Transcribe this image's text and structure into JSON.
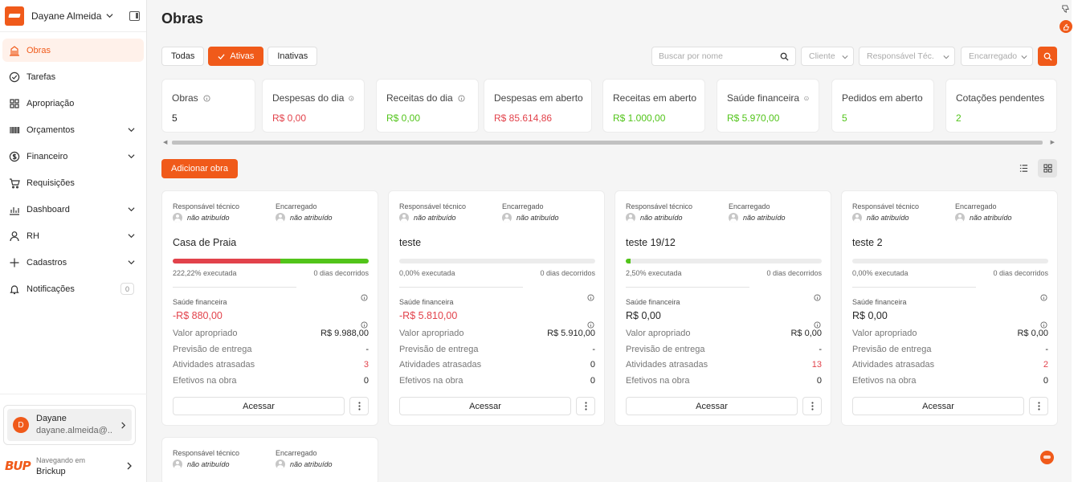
{
  "sidebar": {
    "username": "Dayane Almeida",
    "items": [
      {
        "label": "Obras",
        "name": "sidebar-item-obras",
        "icon": "building-icon",
        "active": true
      },
      {
        "label": "Tarefas",
        "name": "sidebar-item-tarefas",
        "icon": "check-circle-icon"
      },
      {
        "label": "Apropriação",
        "name": "sidebar-item-apropriacao",
        "icon": "grid-icon"
      },
      {
        "label": "Orçamentos",
        "name": "sidebar-item-orcamentos",
        "icon": "barcode-icon",
        "expandable": true
      },
      {
        "label": "Financeiro",
        "name": "sidebar-item-financeiro",
        "icon": "dollar-circle-icon",
        "expandable": true
      },
      {
        "label": "Requisições",
        "name": "sidebar-item-requisicoes",
        "icon": "cart-icon"
      },
      {
        "label": "Dashboard",
        "name": "sidebar-item-dashboard",
        "icon": "bar-chart-icon",
        "expandable": true
      },
      {
        "label": "RH",
        "name": "sidebar-item-rh",
        "icon": "user-icon",
        "expandable": true
      },
      {
        "label": "Cadastros",
        "name": "sidebar-item-cadastros",
        "icon": "plus-icon",
        "expandable": true
      },
      {
        "label": "Notificações",
        "name": "sidebar-item-notificacoes",
        "icon": "bell-icon",
        "badge": "0"
      }
    ],
    "user": {
      "initial": "D",
      "name": "Dayane",
      "email": "dayane.almeida@..."
    },
    "navigating": {
      "label": "Navegando em",
      "company": "Brickup",
      "logo_text": "BUP"
    }
  },
  "header": {
    "title": "Obras"
  },
  "filters": {
    "todas": "Todas",
    "ativas": "Ativas",
    "inativas": "Inativas"
  },
  "search": {
    "placeholder": "Buscar por nome"
  },
  "selects": {
    "cliente": "Cliente",
    "responsavel": "Responsável Téc.",
    "encarregado": "Encarregado"
  },
  "colors": {
    "accent": "#f05a1a",
    "negative": "#e2424b",
    "positive": "#52c41a"
  },
  "stats": [
    {
      "label": "Obras",
      "value": "5",
      "info": true,
      "color": "default"
    },
    {
      "label": "Despesas do dia",
      "value": "R$ 0,00",
      "info": true,
      "color": "red"
    },
    {
      "label": "Receitas do dia",
      "value": "R$ 0,00",
      "info": true,
      "color": "green"
    },
    {
      "label": "Despesas em aberto",
      "value": "R$ 85.614,86",
      "info": false,
      "color": "red"
    },
    {
      "label": "Receitas em aberto",
      "value": "R$ 1.000,00",
      "info": false,
      "color": "green"
    },
    {
      "label": "Saúde financeira",
      "value": "R$ 5.970,00",
      "info": true,
      "color": "green"
    },
    {
      "label": "Pedidos em aberto",
      "value": "5",
      "info": true,
      "color": "green"
    },
    {
      "label": "Cotações pendentes",
      "value": "2",
      "info": false,
      "color": "green"
    }
  ],
  "actions": {
    "add_obra": "Adicionar obra"
  },
  "card_labels": {
    "responsavel": "Responsável técnico",
    "encarregado": "Encarregado",
    "nao_atribuido": "não atribuído",
    "saude": "Saúde financeira",
    "valor_apropriado": "Valor apropriado",
    "previsao": "Previsão de entrega",
    "atividades": "Atividades atrasadas",
    "efetivos": "Efetivos na obra",
    "acessar": "Acessar"
  },
  "cards": [
    {
      "title": "Casa de Praia",
      "progress_red_fraction": 0.55,
      "progress_green_fraction": 0.45,
      "executada": "222,22% executada",
      "dias": "0 dias decorridos",
      "saude": "-R$ 880,00",
      "saude_negative": true,
      "valor": "R$ 9.988,00",
      "previsao": "-",
      "atividades": "3",
      "atividades_red": true,
      "efetivos": "0"
    },
    {
      "title": "teste",
      "progress_red_fraction": 0,
      "progress_green_fraction": 0,
      "executada": "0,00% executada",
      "dias": "0 dias decorridos",
      "saude": "-R$ 5.810,00",
      "saude_negative": true,
      "valor": "R$ 5.910,00",
      "previsao": "-",
      "atividades": "0",
      "atividades_red": false,
      "efetivos": "0"
    },
    {
      "title": "teste 19/12",
      "progress_red_fraction": 0,
      "progress_green_fraction": 0.025,
      "executada": "2,50% executada",
      "dias": "0 dias decorridos",
      "saude": "R$ 0,00",
      "saude_negative": false,
      "valor": "R$ 0,00",
      "previsao": "-",
      "atividades": "13",
      "atividades_red": true,
      "efetivos": "0"
    },
    {
      "title": "teste 2",
      "progress_red_fraction": 0,
      "progress_green_fraction": 0,
      "executada": "0,00% executada",
      "dias": "0 dias decorridos",
      "saude": "R$ 0,00",
      "saude_negative": false,
      "valor": "R$ 0,00",
      "previsao": "-",
      "atividades": "2",
      "atividades_red": true,
      "efetivos": "0"
    }
  ]
}
